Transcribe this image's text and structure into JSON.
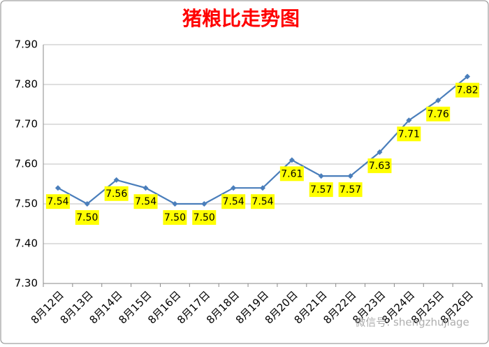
{
  "chart_data": {
    "type": "line",
    "title": "猪粮比走势图",
    "categories": [
      "8月12日",
      "8月13日",
      "8月14日",
      "8月15日",
      "8月16日",
      "8月17日",
      "8月18日",
      "8月19日",
      "8月20日",
      "8月21日",
      "8月22日",
      "8月23日",
      "8月24日",
      "8月25日",
      "8月26日"
    ],
    "values": [
      7.54,
      7.5,
      7.56,
      7.54,
      7.5,
      7.5,
      7.54,
      7.54,
      7.61,
      7.57,
      7.57,
      7.63,
      7.71,
      7.76,
      7.82
    ],
    "value_labels": [
      "7.54",
      "7.50",
      "7.56",
      "7.54",
      "7.50",
      "7.50",
      "7.54",
      "7.54",
      "7.61",
      "7.57",
      "7.57",
      "7.63",
      "7.71",
      "7.76",
      "7.82"
    ],
    "color": "#4a7ebb",
    "ylim": [
      7.3,
      7.9
    ],
    "yticks": [
      {
        "value": 7.3,
        "label": "7.30"
      },
      {
        "value": 7.4,
        "label": "7.40"
      },
      {
        "value": 7.5,
        "label": "7.50"
      },
      {
        "value": 7.6,
        "label": "7.60"
      },
      {
        "value": 7.7,
        "label": "7.70"
      },
      {
        "value": 7.8,
        "label": "7.80"
      },
      {
        "value": 7.9,
        "label": "7.90"
      }
    ],
    "grid": true,
    "watermark": "微信号: shengzhujiage"
  }
}
